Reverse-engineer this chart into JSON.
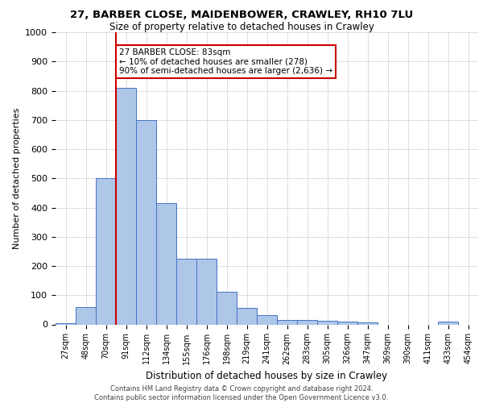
{
  "title_line1": "27, BARBER CLOSE, MAIDENBOWER, CRAWLEY, RH10 7LU",
  "title_line2": "Size of property relative to detached houses in Crawley",
  "xlabel": "Distribution of detached houses by size in Crawley",
  "ylabel": "Number of detached properties",
  "bin_labels": [
    "27sqm",
    "48sqm",
    "70sqm",
    "91sqm",
    "112sqm",
    "134sqm",
    "155sqm",
    "176sqm",
    "198sqm",
    "219sqm",
    "241sqm",
    "262sqm",
    "283sqm",
    "305sqm",
    "326sqm",
    "347sqm",
    "369sqm",
    "390sqm",
    "411sqm",
    "433sqm",
    "454sqm"
  ],
  "bar_values": [
    5,
    58,
    500,
    810,
    700,
    415,
    225,
    225,
    113,
    57,
    33,
    15,
    15,
    12,
    10,
    6,
    0,
    0,
    0,
    10,
    0
  ],
  "bar_color": "#aec6e8",
  "bar_edge_color": "#4472c4",
  "marker_line_color": "#cc0000",
  "annotation_box_edge_color": "#cc0000",
  "marker_label_line1": "27 BARBER CLOSE: 83sqm",
  "marker_label_line2": "← 10% of detached houses are smaller (278)",
  "marker_label_line3": "90% of semi-detached houses are larger (2,636) →",
  "ylim": [
    0,
    1000
  ],
  "yticks": [
    0,
    100,
    200,
    300,
    400,
    500,
    600,
    700,
    800,
    900,
    1000
  ],
  "footer_line1": "Contains HM Land Registry data © Crown copyright and database right 2024.",
  "footer_line2": "Contains public sector information licensed under the Open Government Licence v3.0.",
  "bg_color": "#ffffff",
  "grid_color": "#d0d0d0",
  "title1_fontsize": 9.5,
  "title2_fontsize": 8.5,
  "ylabel_fontsize": 8,
  "xlabel_fontsize": 8.5,
  "tick_fontsize": 7,
  "annot_fontsize": 7.5,
  "footer_fontsize": 6
}
